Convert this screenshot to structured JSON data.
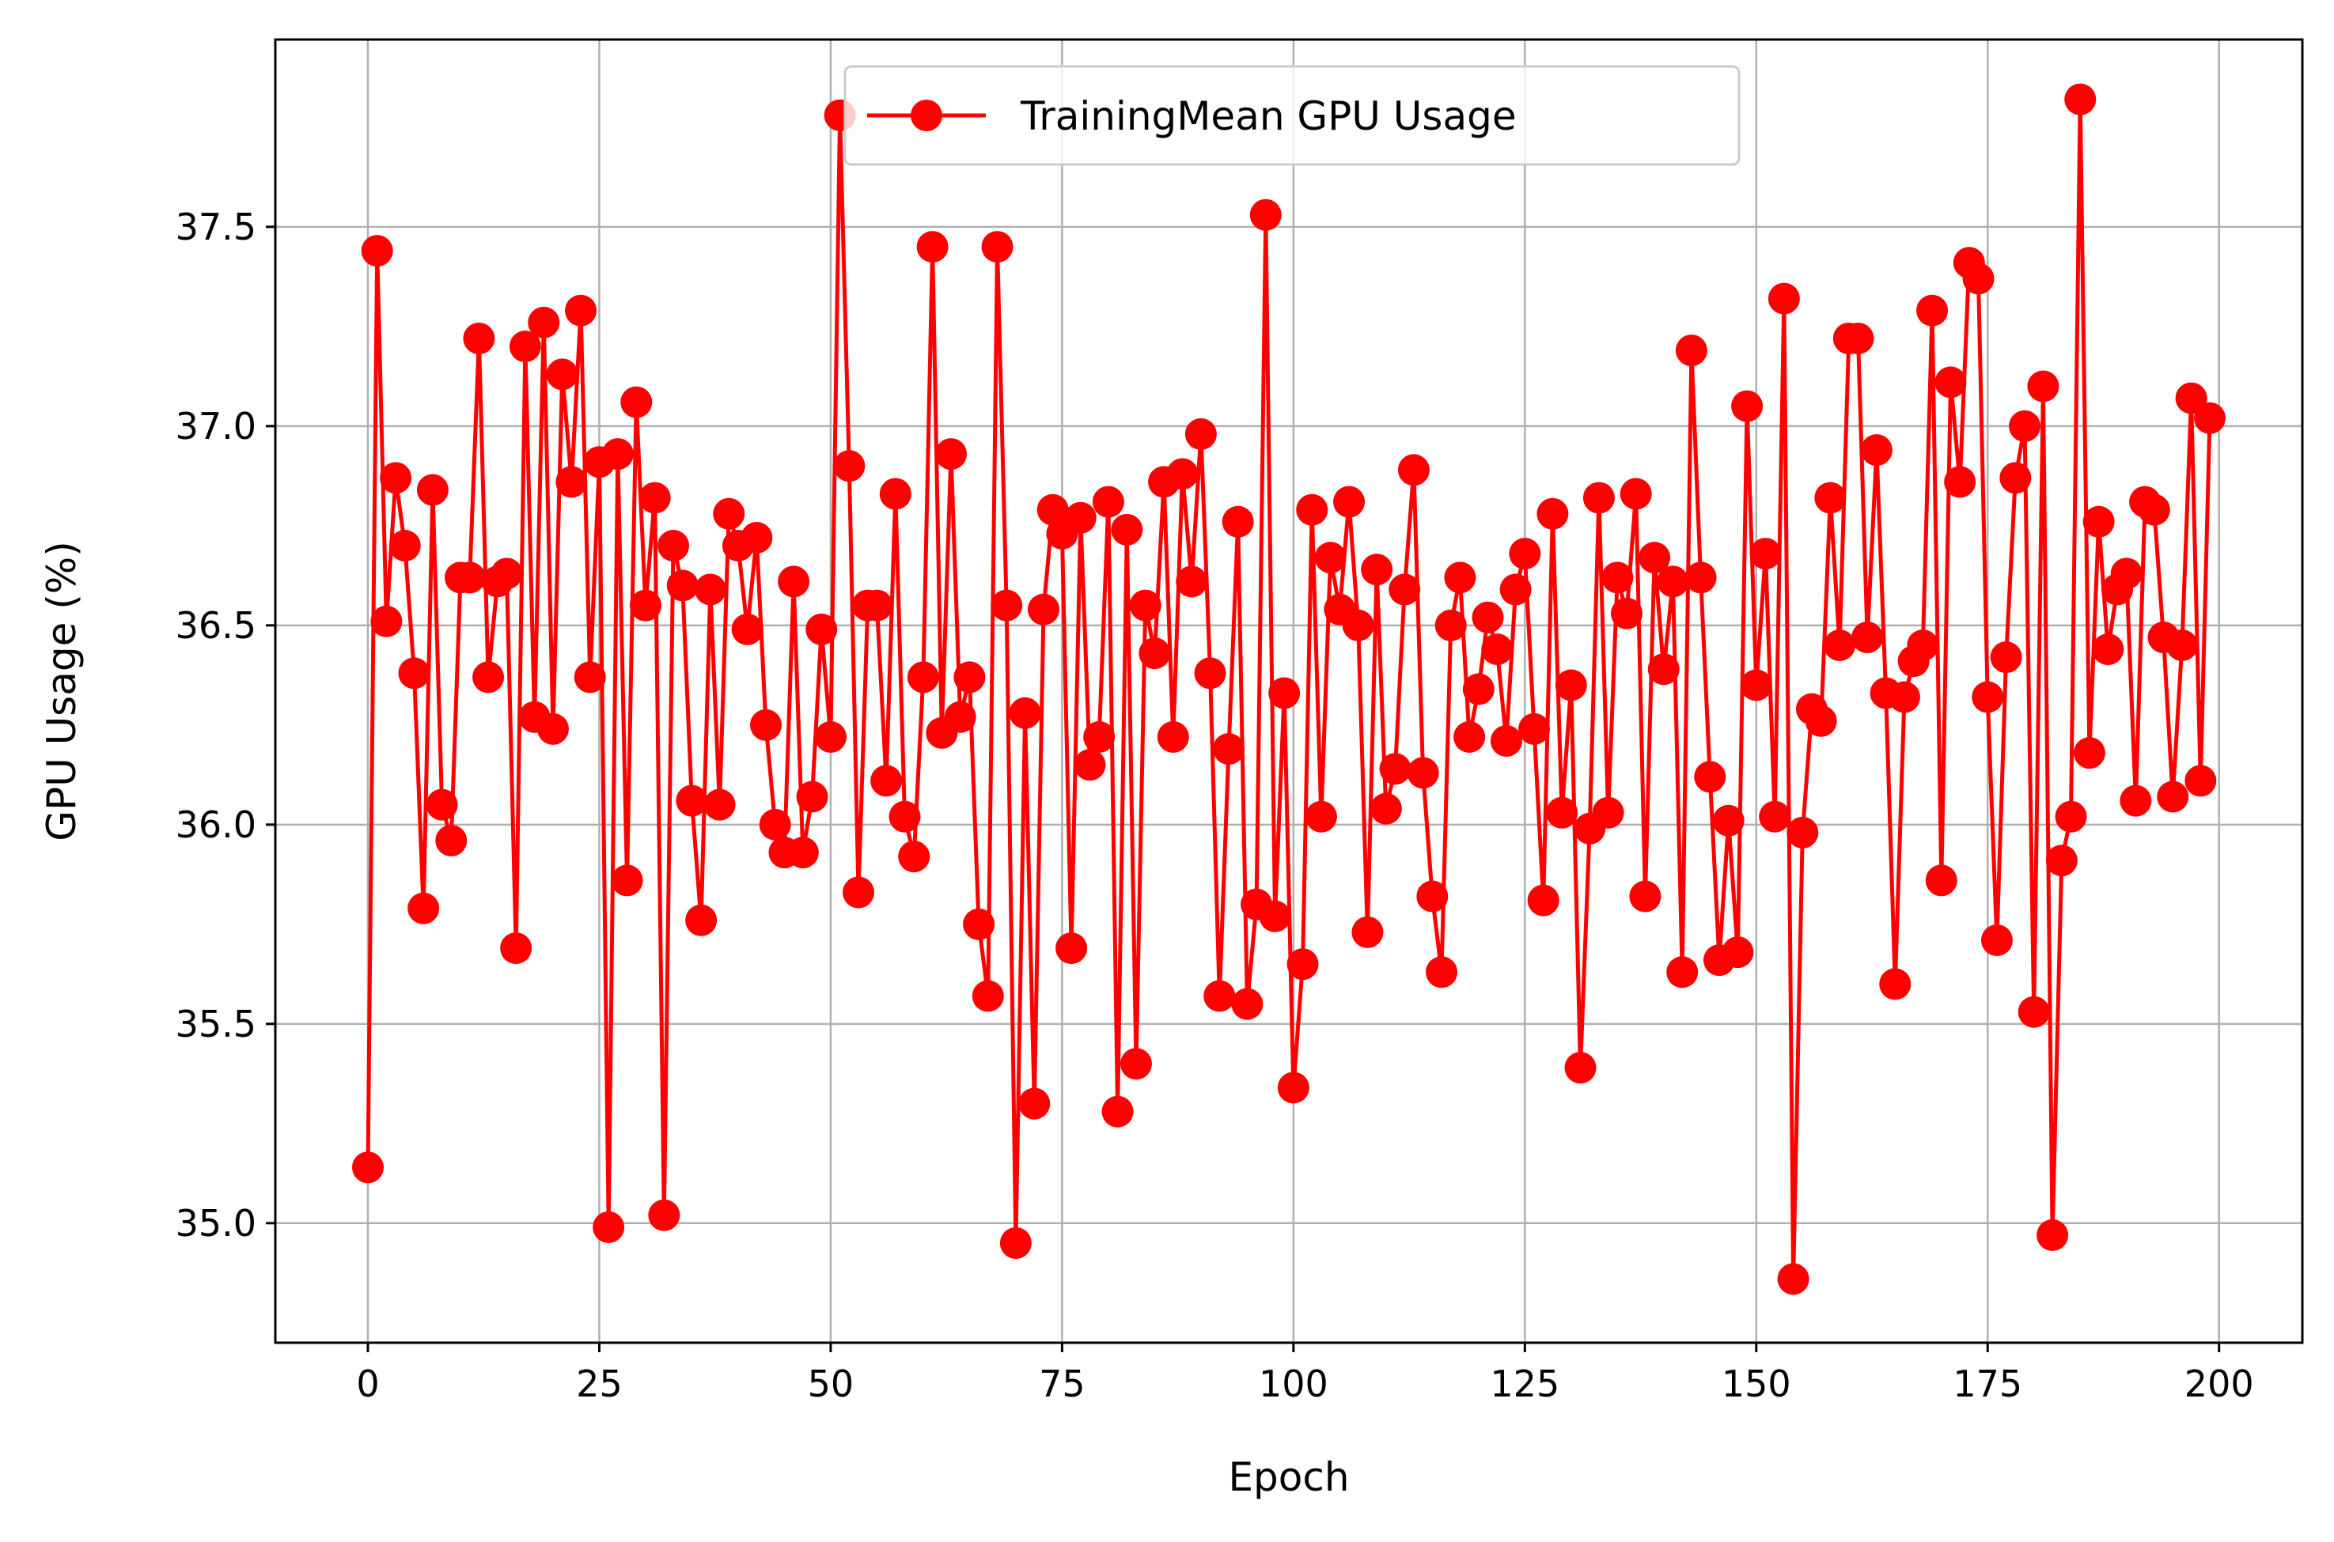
{
  "colors": {
    "series": "#ff0000",
    "grid": "#b0b0b0",
    "axis": "#000000",
    "legend_border": "#cccccc"
  },
  "chart_data": {
    "type": "line",
    "title": "",
    "xlabel": "Epoch",
    "ylabel": "GPU Usage (%)",
    "xlim": [
      -10,
      209
    ],
    "ylim": [
      34.7,
      37.97
    ],
    "xticks": [
      0,
      25,
      50,
      75,
      100,
      125,
      150,
      175,
      200
    ],
    "xtick_labels": [
      "0",
      "25",
      "50",
      "75",
      "100",
      "125",
      "150",
      "175",
      "200"
    ],
    "yticks": [
      35.0,
      35.5,
      36.0,
      36.5,
      37.0,
      37.5
    ],
    "ytick_labels": [
      "35.0",
      "35.5",
      "36.0",
      "36.5",
      "37.0",
      "37.5"
    ],
    "grid": true,
    "legend_position": "top-center",
    "series": [
      {
        "name": "TrainingMean GPU Usage",
        "marker": "circle",
        "color": "#ff0000",
        "x": [
          0,
          1,
          2,
          3,
          4,
          5,
          6,
          7,
          8,
          9,
          10,
          11,
          12,
          13,
          14,
          15,
          16,
          17,
          18,
          19,
          20,
          21,
          22,
          23,
          24,
          25,
          26,
          27,
          28,
          29,
          30,
          31,
          32,
          33,
          34,
          35,
          36,
          37,
          38,
          39,
          40,
          41,
          42,
          43,
          44,
          45,
          46,
          47,
          48,
          49,
          50,
          51,
          52,
          53,
          54,
          55,
          56,
          57,
          58,
          59,
          60,
          61,
          62,
          63,
          64,
          65,
          66,
          67,
          68,
          69,
          70,
          71,
          72,
          73,
          74,
          75,
          76,
          77,
          78,
          79,
          80,
          81,
          82,
          83,
          84,
          85,
          86,
          87,
          88,
          89,
          90,
          91,
          92,
          93,
          94,
          95,
          96,
          97,
          98,
          99,
          100,
          101,
          102,
          103,
          104,
          105,
          106,
          107,
          108,
          109,
          110,
          111,
          112,
          113,
          114,
          115,
          116,
          117,
          118,
          119,
          120,
          121,
          122,
          123,
          124,
          125,
          126,
          127,
          128,
          129,
          130,
          131,
          132,
          133,
          134,
          135,
          136,
          137,
          138,
          139,
          140,
          141,
          142,
          143,
          144,
          145,
          146,
          147,
          148,
          149,
          150,
          151,
          152,
          153,
          154,
          155,
          156,
          157,
          158,
          159,
          160,
          161,
          162,
          163,
          164,
          165,
          166,
          167,
          168,
          169,
          170,
          171,
          172,
          173,
          174,
          175,
          176,
          177,
          178,
          179,
          180,
          181,
          182,
          183,
          184,
          185,
          186,
          187,
          188,
          189,
          190,
          191,
          192,
          193,
          194,
          195,
          196,
          197,
          198,
          199
        ],
        "values": [
          35.14,
          37.44,
          36.51,
          36.87,
          36.7,
          36.38,
          35.79,
          36.84,
          36.05,
          35.96,
          36.62,
          36.62,
          37.22,
          36.37,
          36.61,
          36.63,
          35.69,
          37.2,
          36.27,
          37.26,
          36.24,
          37.13,
          36.86,
          37.29,
          36.37,
          36.91,
          34.99,
          36.93,
          35.86,
          37.06,
          36.55,
          36.82,
          35.02,
          36.7,
          36.6,
          36.06,
          35.76,
          36.59,
          36.05,
          36.78,
          36.7,
          36.49,
          36.72,
          36.25,
          36.0,
          35.93,
          36.61,
          35.93,
          36.07,
          36.49,
          36.22,
          37.78,
          36.9,
          35.83,
          36.55,
          36.55,
          36.11,
          36.83,
          36.02,
          35.92,
          36.37,
          37.45,
          36.23,
          36.93,
          36.27,
          36.37,
          35.75,
          35.57,
          37.45,
          36.55,
          34.95,
          36.28,
          35.3,
          36.54,
          36.79,
          36.73,
          35.69,
          36.77,
          36.15,
          36.22,
          36.81,
          35.28,
          36.74,
          35.4,
          36.55,
          36.43,
          36.86,
          36.22,
          36.88,
          36.61,
          36.98,
          36.38,
          35.57,
          36.19,
          36.76,
          35.55,
          35.8,
          37.53,
          35.77,
          36.33,
          35.34,
          35.65,
          36.79,
          36.02,
          36.67,
          36.54,
          36.81,
          36.5,
          35.73,
          36.64,
          36.04,
          36.14,
          36.59,
          36.89,
          36.13,
          35.82,
          35.63,
          36.5,
          36.62,
          36.22,
          36.34,
          36.52,
          36.44,
          36.21,
          36.59,
          36.68,
          36.24,
          35.81,
          36.78,
          36.03,
          36.35,
          35.39,
          35.99,
          36.82,
          36.03,
          36.62,
          36.53,
          36.83,
          35.82,
          36.67,
          36.39,
          36.61,
          35.63,
          37.19,
          36.62,
          36.12,
          35.66,
          36.01,
          35.68,
          37.05,
          36.35,
          36.68,
          36.02,
          37.32,
          34.86,
          35.98,
          36.29,
          36.26,
          36.82,
          36.45,
          37.22,
          37.22,
          36.47,
          36.94,
          36.33,
          35.6,
          36.32,
          36.41,
          36.45,
          37.29,
          35.86,
          37.11,
          36.86,
          37.41,
          37.37,
          36.32,
          35.71,
          36.42,
          36.87,
          37.0,
          35.53,
          37.1,
          34.97,
          35.91,
          36.02,
          37.82,
          36.18,
          36.76,
          36.44,
          36.59,
          36.63,
          36.06,
          36.81,
          36.79,
          36.47,
          36.07,
          36.45,
          37.07,
          36.11,
          37.02
        ]
      }
    ]
  }
}
